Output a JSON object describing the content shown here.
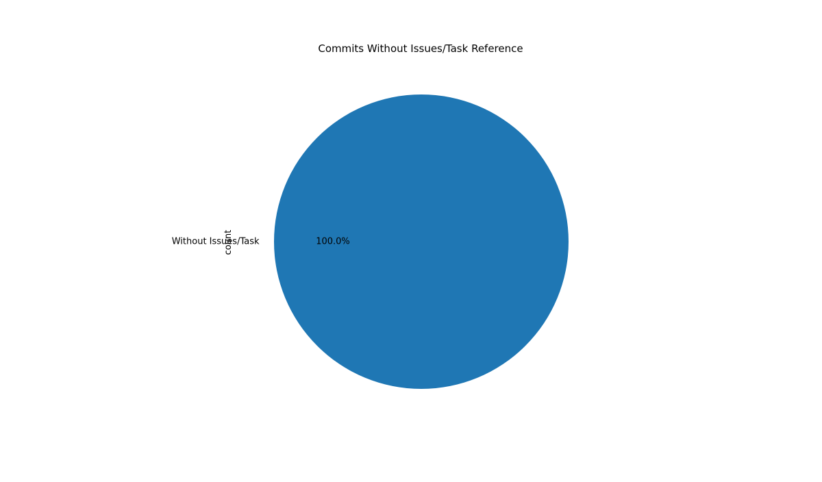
{
  "chart_data": {
    "type": "pie",
    "title": "Commits Without Issues/Task Reference",
    "ylabel": "count",
    "labels": [
      "Without Issues/Task"
    ],
    "values": [
      1
    ],
    "percent_labels": [
      "100.0%"
    ],
    "colors": [
      "#1f77b4"
    ],
    "legend": "none"
  }
}
